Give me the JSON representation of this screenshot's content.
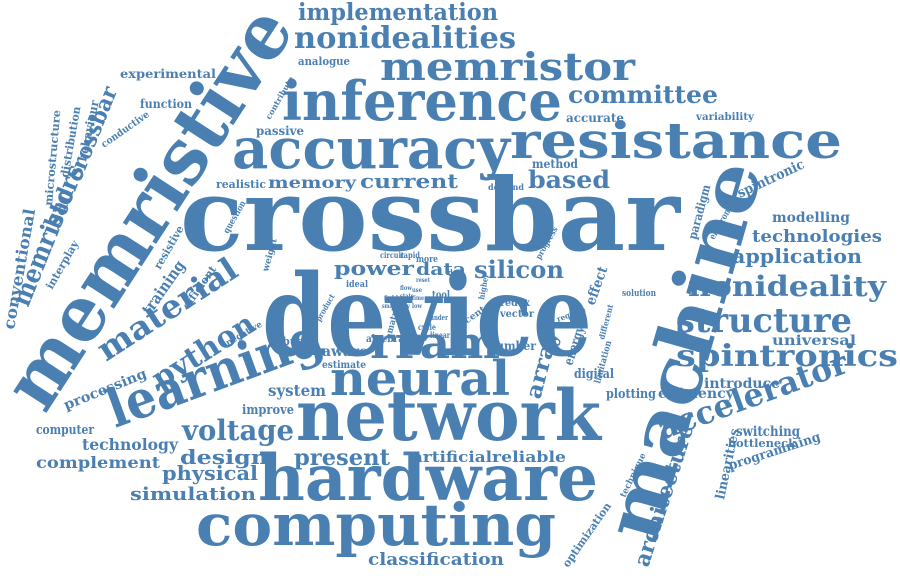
{
  "accent_color": "#4a7fb2",
  "background_color": "#ffffff",
  "words": {
    "crossbar": "crossbar",
    "device": "device",
    "machine": "machine",
    "memristive": "memristive",
    "network": "network",
    "hardware": "hardware",
    "computing": "computing",
    "inference": "inference",
    "accuracy": "accuracy",
    "resistance": "resistance",
    "learning": "learning",
    "neural": "neural",
    "rram": "rram",
    "memristor": "memristor",
    "nonidealities": "nonidealities",
    "implementation": "implementation",
    "spintronics": "spintronics",
    "structure": "structure",
    "nonideality": "nonideality",
    "accelerator": "accelerator",
    "material": "material",
    "python": "python",
    "memristors": "memristors",
    "bad": "bad",
    "crossbar_small": "crossbar",
    "array": "array",
    "committee": "committee",
    "based": "based",
    "current": "current",
    "memory": "memory",
    "power": "power",
    "data": "data",
    "silicon": "silicon",
    "voltage": "voltage",
    "design": "design",
    "physical": "physical",
    "present": "present",
    "simulation": "simulation",
    "classification": "classification",
    "artificial": "artificial",
    "reliable": "reliable",
    "architecture": "architecture",
    "application": "application",
    "technologies": "technologies",
    "modelling": "modelling",
    "ideal_ities": "idealities",
    "spintronic": "spintronic",
    "paradigm": "paradigm",
    "electronic": "electronic",
    "universal": "universal",
    "introduce": "introduce",
    "efficiency": "efficiency",
    "switching": "switching",
    "bottleneck": "bottleneck",
    "programming": "programming",
    "linearities": "linearities",
    "technique": "technique",
    "optimization": "optimization",
    "plotting": "plotting",
    "digital": "digital",
    "energy": "energy",
    "effect": "effect",
    "limitation": "limitation",
    "system": "system",
    "improve": "improve",
    "aware": "aware",
    "estimate": "estimate",
    "robust": "robust",
    "negative": "negative",
    "computer": "computer",
    "technology": "technology",
    "complement": "complement",
    "processing": "processing",
    "training": "training",
    "efficient": "efficient",
    "resistive": "resistive",
    "conventional": "conventional",
    "interplay": "interplay",
    "microstructure": "microstructure",
    "distribution": "distribution",
    "behaviour": "behaviour",
    "conductive": "conductive",
    "function": "function",
    "experimental": "experimental",
    "analogue": "analogue",
    "passive": "passive",
    "realistic": "realistic",
    "question": "question",
    "weight": "weight",
    "contribute": "contribute",
    "accurate": "accurate",
    "variability": "variability",
    "method": "method",
    "demand": "demand",
    "progress": "progress",
    "number": "number",
    "redox": "redox",
    "vector": "vector",
    "solution": "solution",
    "require": "require",
    "different": "different",
    "higher": "higher",
    "recent": "recent",
    "tool": "tool",
    "deal": "deal",
    "ideal": "ideal",
    "algebra": "algebra",
    "matrix": "matrix",
    "circuit": "circuit",
    "rapid": "rapid",
    "more": "more",
    "product": "product",
    "cycle": "cycle",
    "linear": "linear",
    "under": "under",
    "field": "field",
    "flow": "flow",
    "state": "state",
    "use": "use",
    "time": "time",
    "reset": "reset",
    "small": "small",
    "tiny": "tiny",
    "low": "low"
  }
}
